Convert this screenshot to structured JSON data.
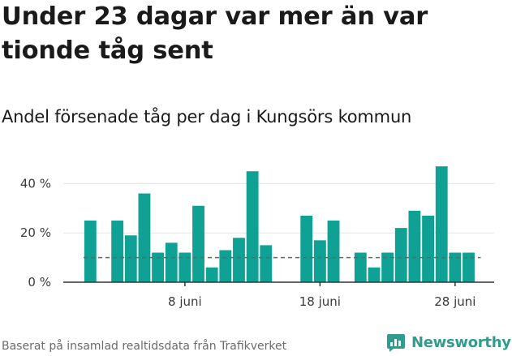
{
  "title": "Under 23 dagar var mer än var tionde tåg sent",
  "subtitle": "Andel försenade tåg per dag i Kungsörs kommun",
  "source": "Baserat på insamlad realtidsdata från Trafikverket",
  "brand": {
    "name": "Newsworthy",
    "color": "#2f9c8f"
  },
  "colors": {
    "bar": "#0fa294",
    "grid": "#e3e3e3",
    "axis": "#333333",
    "reference": "#666666"
  },
  "chart_data": {
    "type": "bar",
    "title": "Under 23 dagar var mer än var tionde tåg sent",
    "subtitle": "Andel försenade tåg per dag i Kungsörs kommun",
    "unit": "%",
    "x": [
      "2023-06-01",
      "2023-06-02",
      "2023-06-03",
      "2023-06-04",
      "2023-06-05",
      "2023-06-06",
      "2023-06-07",
      "2023-06-08",
      "2023-06-09",
      "2023-06-10",
      "2023-06-11",
      "2023-06-12",
      "2023-06-13",
      "2023-06-14",
      "2023-06-15",
      "2023-06-16",
      "2023-06-17",
      "2023-06-18",
      "2023-06-19",
      "2023-06-20",
      "2023-06-21",
      "2023-06-22",
      "2023-06-23",
      "2023-06-24",
      "2023-06-25",
      "2023-06-26",
      "2023-06-27",
      "2023-06-28",
      "2023-06-29",
      "2023-06-30"
    ],
    "values": [
      25,
      null,
      25,
      19,
      36,
      12,
      16,
      12,
      31,
      6,
      13,
      18,
      45,
      15,
      null,
      null,
      27,
      17,
      25,
      null,
      12,
      6,
      12,
      22,
      29,
      27,
      47,
      12,
      12,
      null
    ],
    "reference_line": 10,
    "ylim": [
      0,
      50
    ],
    "yticks": [
      0,
      20,
      40
    ],
    "ytick_labels": [
      "0 %",
      "20 %",
      "40 %"
    ],
    "xticks": [
      "2023-06-08",
      "2023-06-18",
      "2023-06-28"
    ],
    "xtick_labels": [
      "8 juni",
      "18 juni",
      "28 juni"
    ],
    "grid": true,
    "legend": false
  }
}
